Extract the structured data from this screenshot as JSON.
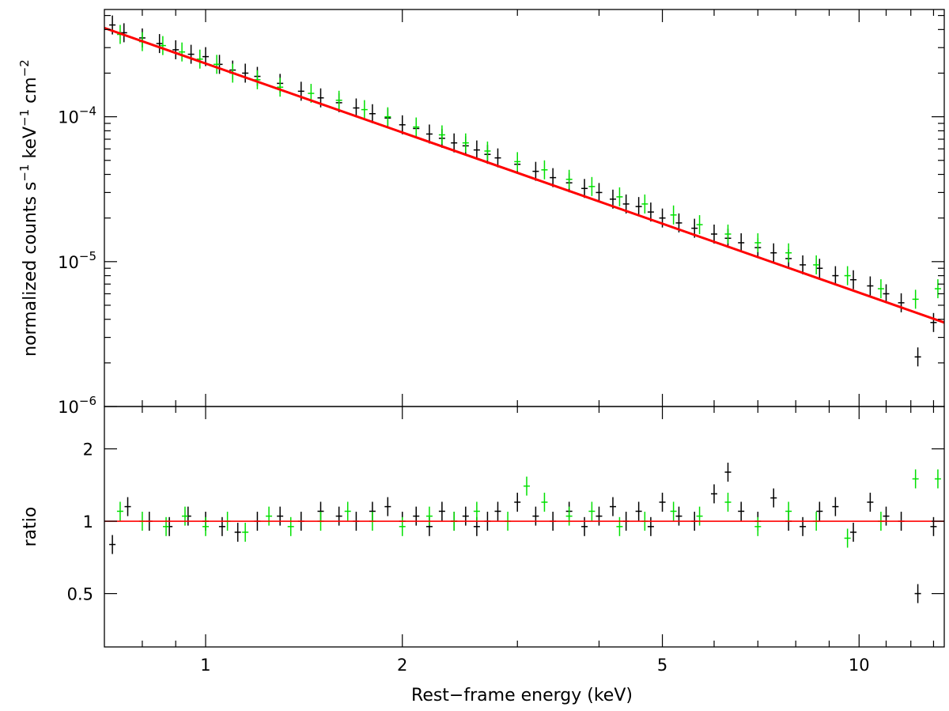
{
  "chart_data": [
    {
      "type": "scatter",
      "panel": "spectrum",
      "ylabel": {
        "base": "normalized counts s",
        "s_exp": "−1",
        "mid": " keV",
        "kev_exp": "−1",
        "cm": " cm",
        "cm_exp": "−2"
      },
      "xscale": "log",
      "yscale": "log",
      "xlim": [
        0.7,
        13.5
      ],
      "ylim": [
        1e-06,
        0.00055
      ],
      "y_ticks": [
        {
          "base": "10",
          "exp": "−4",
          "value": 0.0001
        },
        {
          "base": "10",
          "exp": "−5",
          "value": 1e-05
        },
        {
          "base": "10",
          "exp": "−6",
          "value": 1e-06
        }
      ],
      "series": [
        {
          "color": "#000000",
          "description": "data points with error bars (black)",
          "x": [
            0.72,
            0.75,
            0.8,
            0.85,
            0.9,
            0.95,
            1.0,
            1.05,
            1.1,
            1.15,
            1.2,
            1.3,
            1.4,
            1.5,
            1.6,
            1.7,
            1.8,
            1.9,
            2.0,
            2.1,
            2.2,
            2.3,
            2.4,
            2.5,
            2.6,
            2.7,
            2.8,
            3.0,
            3.2,
            3.4,
            3.6,
            3.8,
            4.0,
            4.2,
            4.4,
            4.6,
            4.8,
            5.0,
            5.3,
            5.6,
            6.0,
            6.3,
            6.6,
            7.0,
            7.4,
            7.8,
            8.2,
            8.7,
            9.2,
            9.8,
            10.4,
            11.0,
            11.6,
            12.3,
            13.0
          ],
          "y": [
            0.00043,
            0.00038,
            0.00035,
            0.00032,
            0.00029,
            0.00027,
            0.00026,
            0.00023,
            0.00021,
            0.0002,
            0.00019,
            0.00017,
            0.00015,
            0.000135,
            0.000125,
            0.000115,
            0.000105,
            9.8e-05,
            8.8e-05,
            8.3e-05,
            7.6e-05,
            7.1e-05,
            6.6e-05,
            6.3e-05,
            5.9e-05,
            5.5e-05,
            5.2e-05,
            4.7e-05,
            4.2e-05,
            3.8e-05,
            3.5e-05,
            3.2e-05,
            3e-05,
            2.7e-05,
            2.5e-05,
            2.4e-05,
            2.2e-05,
            2e-05,
            1.85e-05,
            1.7e-05,
            1.55e-05,
            1.45e-05,
            1.35e-05,
            1.25e-05,
            1.15e-05,
            1.05e-05,
            9.5e-06,
            9e-06,
            8e-06,
            7.5e-06,
            6.8e-06,
            6e-06,
            5.2e-06,
            2.2e-06,
            3.8e-06
          ]
        },
        {
          "color": "#00e000",
          "description": "data points with error bars (green)",
          "x": [
            0.74,
            0.8,
            0.86,
            0.92,
            0.98,
            1.04,
            1.1,
            1.2,
            1.3,
            1.45,
            1.6,
            1.75,
            1.9,
            2.1,
            2.3,
            2.5,
            2.7,
            3.0,
            3.3,
            3.6,
            3.9,
            4.3,
            4.7,
            5.2,
            5.7,
            6.3,
            7.0,
            7.8,
            8.6,
            9.6,
            10.8,
            12.2,
            13.2
          ],
          "y": [
            0.00037,
            0.00033,
            0.00031,
            0.00028,
            0.00025,
            0.00023,
            0.0002,
            0.00018,
            0.00016,
            0.000145,
            0.00013,
            0.000112,
            0.0001,
            8.5e-05,
            7.5e-05,
            6.6e-05,
            5.8e-05,
            4.9e-05,
            4.3e-05,
            3.7e-05,
            3.3e-05,
            2.8e-05,
            2.5e-05,
            2.1e-05,
            1.8e-05,
            1.55e-05,
            1.35e-05,
            1.15e-05,
            9.5e-06,
            8e-06,
            6.5e-06,
            5.5e-06,
            6.5e-06
          ]
        },
        {
          "color": "#ff0000",
          "description": "model curve",
          "type": "line",
          "x": [
            0.7,
            13.5
          ],
          "y": [
            0.00041,
            3.8e-06
          ]
        }
      ]
    },
    {
      "type": "scatter",
      "panel": "ratio",
      "ylabel": "ratio",
      "xlabel": "Rest−frame energy (keV)",
      "xscale": "log",
      "yscale": "log",
      "xlim": [
        0.7,
        13.5
      ],
      "ylim": [
        0.3,
        3.0
      ],
      "x_ticks": [
        {
          "label": "1",
          "value": 1
        },
        {
          "label": "2",
          "value": 2
        },
        {
          "label": "5",
          "value": 5
        },
        {
          "label": "10",
          "value": 10
        }
      ],
      "y_ticks": [
        {
          "label": "2",
          "value": 2
        },
        {
          "label": "1",
          "value": 1
        },
        {
          "label": "0.5",
          "value": 0.5
        }
      ],
      "series": [
        {
          "color": "#000000",
          "description": "ratio points (black)",
          "x": [
            0.72,
            0.76,
            0.82,
            0.88,
            0.94,
            1.0,
            1.06,
            1.12,
            1.2,
            1.3,
            1.4,
            1.5,
            1.6,
            1.7,
            1.8,
            1.9,
            2.0,
            2.1,
            2.2,
            2.3,
            2.4,
            2.5,
            2.6,
            2.7,
            2.8,
            3.0,
            3.2,
            3.4,
            3.6,
            3.8,
            4.0,
            4.2,
            4.4,
            4.6,
            4.8,
            5.0,
            5.3,
            5.6,
            6.0,
            6.3,
            6.6,
            7.0,
            7.4,
            7.8,
            8.2,
            8.7,
            9.2,
            9.8,
            10.4,
            11.0,
            11.6,
            12.3,
            13.0
          ],
          "y": [
            0.8,
            1.15,
            1.0,
            0.95,
            1.05,
            1.0,
            0.95,
            0.9,
            1.0,
            1.05,
            1.0,
            1.1,
            1.05,
            1.0,
            1.1,
            1.15,
            1.0,
            1.05,
            0.95,
            1.1,
            1.0,
            1.05,
            0.95,
            1.0,
            1.1,
            1.2,
            1.05,
            1.0,
            1.1,
            0.95,
            1.05,
            1.15,
            1.0,
            1.1,
            0.95,
            1.2,
            1.05,
            1.0,
            1.3,
            1.6,
            1.1,
            1.0,
            1.25,
            1.0,
            0.95,
            1.1,
            1.15,
            0.9,
            1.2,
            1.05,
            1.0,
            0.5,
            0.95
          ]
        },
        {
          "color": "#00e000",
          "description": "ratio points (green)",
          "x": [
            0.74,
            0.8,
            0.87,
            0.93,
            1.0,
            1.08,
            1.15,
            1.25,
            1.35,
            1.5,
            1.65,
            1.8,
            2.0,
            2.2,
            2.4,
            2.6,
            2.9,
            3.1,
            3.3,
            3.6,
            3.9,
            4.3,
            4.7,
            5.2,
            5.7,
            6.3,
            7.0,
            7.8,
            8.6,
            9.6,
            10.8,
            12.2,
            13.2
          ],
          "y": [
            1.1,
            1.0,
            0.95,
            1.05,
            0.95,
            1.0,
            0.9,
            1.05,
            0.95,
            1.0,
            1.1,
            1.0,
            0.95,
            1.05,
            1.0,
            1.1,
            1.0,
            1.4,
            1.2,
            1.05,
            1.1,
            0.95,
            1.0,
            1.1,
            1.05,
            1.2,
            0.95,
            1.1,
            1.0,
            0.85,
            1.0,
            1.5,
            1.5
          ]
        },
        {
          "color": "#ff0000",
          "description": "unity line",
          "type": "line",
          "x": [
            0.7,
            13.5
          ],
          "y": [
            1.0,
            1.0
          ]
        }
      ]
    }
  ]
}
